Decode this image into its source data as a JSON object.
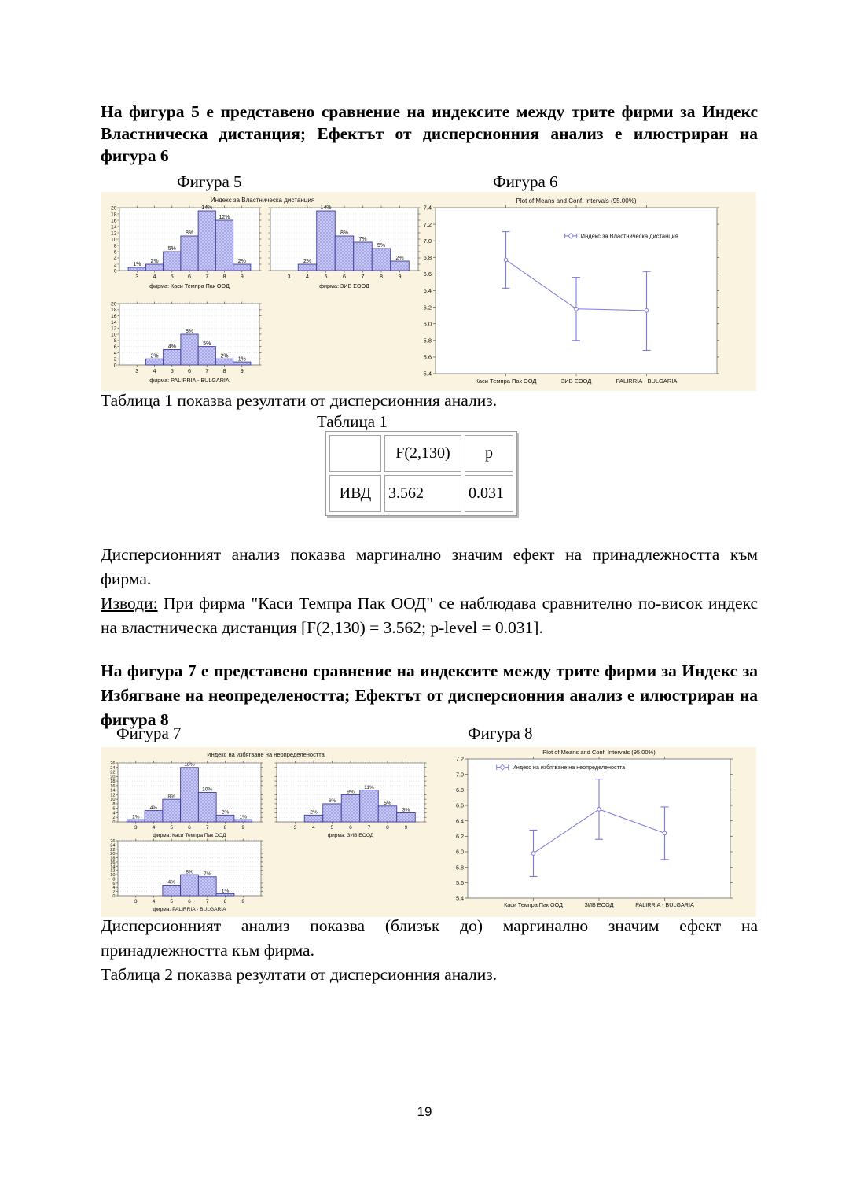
{
  "document": {
    "page_number": "19"
  },
  "colors": {
    "figure_background": "#faf3e0",
    "bar_fill": "#ccccfa",
    "bar_hatch": "#9191d8",
    "bar_border": "#3b3b9e",
    "line_color": "#7a7ade"
  },
  "section1": {
    "heading": "На фигура 5 е представено сравнение на индексите между трите фирми за Индекс Властническа дистанция;  Ефектът от дисперсионния анализ е илюстриран на фигура 6",
    "figure5_caption": "Фигура 5",
    "figure6_caption": "Фигура 6",
    "table_intro": "Таблица 1 показва резултати от дисперсионния анализ.",
    "table_caption": "Таблица 1",
    "analysis_text": "Дисперсионният анализ показва маргинално значим ефект на принадлежността към фирма.",
    "conclusions_label": "Изводи:",
    "conclusions_text": " При фирма \"Каси Темпра Пак ООД\" се наблюдава сравнително по-висок индекс на властническа дистанция [F(2,130) = 3.562; p-level = 0.031]."
  },
  "table1": {
    "headers": [
      "",
      "F(2,130)",
      "p"
    ],
    "rows": [
      [
        "ИВД",
        "3.562",
        "0.031"
      ]
    ]
  },
  "section2": {
    "heading": "На фигура 7 е представено сравнение на индексите между трите фирми за Индекс за Избягване на неопределеността; Ефектът от дисперсионния анализ е илюстриран на фигура  8",
    "figure7_caption": "Фигура 7",
    "figure8_caption": "Фигура 8",
    "analysis_text": "Дисперсионният анализ показва (близък до) маргинално значим ефект на принадлежността към фирма.",
    "table2_intro": "Таблица 2 показва резултати от дисперсионния анализ."
  },
  "chart_data": [
    {
      "id": "fig5",
      "type": "bar",
      "chart_kind": "histogram-grid",
      "title": "Индекс за Властническа дистанция",
      "categories": [
        "3",
        "4",
        "5",
        "6",
        "7",
        "8",
        "9"
      ],
      "ylim": [
        0,
        20
      ],
      "ytick_step": 2,
      "grid": true,
      "panels": [
        {
          "xlabel": "фирма: Каси Темпра Пак ООД",
          "values": [
            1,
            2,
            6,
            11,
            19,
            16,
            2
          ],
          "bar_labels": [
            "1%",
            "2%",
            "5%",
            "8%",
            "14%",
            "12%",
            "2%"
          ],
          "show_y_labels": true
        },
        {
          "xlabel": "фирма: ЗИВ ЕООД",
          "values": [
            0,
            2,
            19,
            11,
            9,
            7,
            3
          ],
          "bar_labels": [
            "",
            "2%",
            "14%",
            "8%",
            "7%",
            "5%",
            "2%"
          ],
          "show_y_labels": false
        },
        {
          "xlabel": "фирма: PALIRRIA - BULGARIA",
          "values": [
            0,
            2,
            5,
            10,
            6,
            2,
            1
          ],
          "bar_labels": [
            "",
            "2%",
            "4%",
            "8%",
            "5%",
            "2%",
            "1%"
          ],
          "show_y_labels": true
        }
      ]
    },
    {
      "id": "fig6",
      "type": "line",
      "chart_kind": "means-ci",
      "title": "Plot of Means and Conf. Intervals (95.00%)",
      "legend": "Индекс за Властническа дистанция",
      "legend_pos": "center-right",
      "categories": [
        "Каси Темпра Пак ООД",
        "ЗИВ ЕООД",
        "PALIRRIA - BULGARIA"
      ],
      "means": [
        6.77,
        6.18,
        6.16
      ],
      "ci_low": [
        6.43,
        5.8,
        5.68
      ],
      "ci_high": [
        7.11,
        6.56,
        6.63
      ],
      "ylim": [
        5.4,
        7.4
      ],
      "ytick_step": 0.2
    },
    {
      "id": "fig7",
      "type": "bar",
      "chart_kind": "histogram-grid",
      "title": "Индекс на избягване на неопределеността",
      "categories": [
        "3",
        "4",
        "5",
        "6",
        "7",
        "8",
        "9"
      ],
      "ylim": [
        0,
        26
      ],
      "ytick_step": 2,
      "grid": true,
      "panels": [
        {
          "xlabel": "фирма: Каси Темпра Пак ООД",
          "values": [
            1,
            5,
            10,
            24,
            13,
            3,
            1
          ],
          "bar_labels": [
            "1%",
            "4%",
            "8%",
            "18%",
            "10%",
            "2%",
            "1%"
          ],
          "show_y_labels": true
        },
        {
          "xlabel": "фирма: ЗИВ ЕООД",
          "values": [
            0,
            3,
            8,
            12,
            14,
            7,
            4
          ],
          "bar_labels": [
            "",
            "2%",
            "6%",
            "9%",
            "11%",
            "5%",
            "3%"
          ],
          "show_y_labels": false
        },
        {
          "xlabel": "фирма: PALIRRIA - BULGARIA",
          "values": [
            0,
            0,
            5,
            10,
            9,
            1,
            0
          ],
          "bar_labels": [
            "",
            "",
            "4%",
            "8%",
            "7%",
            "1%",
            ""
          ],
          "show_y_labels": true
        }
      ]
    },
    {
      "id": "fig8",
      "type": "line",
      "chart_kind": "means-ci",
      "title": "Plot of Means and Conf. Intervals (95.00%)",
      "legend": "Индекс на избягване на неопределеността",
      "legend_pos": "top-left",
      "categories": [
        "Каси Темпра Пак ООД",
        "ЗИВ ЕООД",
        "PALIRRIA - BULGARIA"
      ],
      "means": [
        5.98,
        6.55,
        6.24
      ],
      "ci_low": [
        5.68,
        6.16,
        5.9
      ],
      "ci_high": [
        6.28,
        6.94,
        6.58
      ],
      "ylim": [
        5.4,
        7.2
      ],
      "ytick_step": 0.2
    }
  ]
}
